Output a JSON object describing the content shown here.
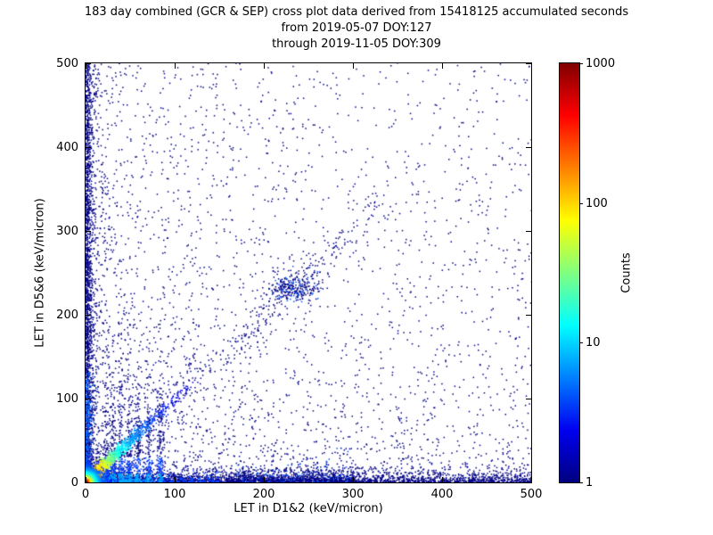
{
  "title": {
    "line1": "183 day combined (GCR & SEP) cross plot data derived from 15418125 accumulated seconds",
    "line2": "from 2019-05-07 DOY:127",
    "line3": "through 2019-11-05 DOY:309"
  },
  "period": {
    "duration_days": 183,
    "accumulated_seconds": 15418125,
    "from_date": "2019-05-07",
    "from_doy": 127,
    "through_date": "2019-11-05",
    "through_doy": 309
  },
  "chart_data": {
    "type": "heatmap",
    "subtype": "2d-histogram-cross-plot",
    "title": "183 day combined (GCR & SEP) cross plot data derived from 15418125 accumulated seconds",
    "xlabel": "LET in D1&2 (keV/micron)",
    "ylabel": "LET in D5&6 (keV/micron)",
    "xlim": [
      0,
      500
    ],
    "ylim": [
      0,
      500
    ],
    "xticks": [
      0,
      100,
      200,
      300,
      400,
      500
    ],
    "yticks": [
      0,
      100,
      200,
      300,
      400,
      500
    ],
    "grid": false,
    "colorbar": {
      "label": "Counts",
      "scale": "log",
      "min": 1,
      "max": 1000,
      "ticks": [
        1,
        10,
        100,
        1000
      ],
      "colormap": "jet",
      "stops": [
        "#000080",
        "#0000f0",
        "#0080ff",
        "#00ffff",
        "#80ff80",
        "#ffff00",
        "#ff8000",
        "#ff0000",
        "#800000"
      ]
    },
    "description": "Cross plot of coincident LET in detectors D1&2 vs D5&6. Counts peak (red/yellow, ~1000) in a hot core at the origin, a cyan-green diagonal streak extends to ~(100,100), dense low-count (dark blue) bands hug both axes out to 500, vertical streaks rise near x=20-85, a small cluster sits near (230,230), and sparse single-count points scatter over the full plane with density decreasing away from the origin.",
    "synthesis": {
      "seed": 42,
      "point_color": "#000085",
      "clusters": [
        {
          "kind": "pow",
          "n": 2000,
          "px": 2.4,
          "py": 2.4,
          "c": "#000085"
        },
        {
          "kind": "uniform",
          "n": 520,
          "x": [
            0,
            500
          ],
          "y": [
            0,
            500
          ],
          "c": "#000085"
        },
        {
          "kind": "pow",
          "n": 700,
          "px": 1.1,
          "py": 3.2,
          "c": "#000085"
        },
        {
          "kind": "pow",
          "n": 700,
          "px": 3.2,
          "py": 1.1,
          "c": "#000085"
        },
        {
          "kind": "bandx",
          "n": 2400,
          "x": [
            0,
            500
          ],
          "p": 1.5,
          "esc": 5,
          "c": "#000085"
        },
        {
          "kind": "bandx",
          "n": 420,
          "x": [
            0,
            150
          ],
          "p": 1.9,
          "esc": 3.5,
          "c": "#0040ff"
        },
        {
          "kind": "bandx",
          "n": 200,
          "x": [
            0,
            70
          ],
          "p": 2.0,
          "esc": 2.5,
          "c": "#00aaff"
        },
        {
          "kind": "bandx",
          "n": 650,
          "x": [
            170,
            300
          ],
          "p": 1.0,
          "esc": 6,
          "cl": [
            [
              "#000085",
              0.8
            ],
            [
              "#0055ff",
              0.2
            ]
          ]
        },
        {
          "kind": "bandy",
          "n": 1500,
          "y": [
            0,
            500
          ],
          "p": 1.3,
          "esc": 3.5,
          "c": "#000085"
        },
        {
          "kind": "bandy",
          "n": 300,
          "y": [
            0,
            130
          ],
          "p": 1.8,
          "esc": 2.2,
          "c": "#0066ff"
        },
        {
          "kind": "diagU",
          "n": 280,
          "t": [
            60,
            330
          ],
          "jit": 10,
          "c": "#000085"
        },
        {
          "kind": "gauss",
          "n": 280,
          "cx": 233,
          "cy": 231,
          "sx": 14,
          "sy": 9,
          "cl": [
            [
              "#000085",
              0.8
            ],
            [
              "#0055ff",
              0.2
            ]
          ]
        },
        {
          "kind": "streaks",
          "xs": [
            22,
            30,
            39,
            48,
            58,
            70,
            83
          ],
          "n": 150,
          "esc": 45,
          "jit": 1.7
        },
        {
          "kind": "diag",
          "n": 1300,
          "scale": 30,
          "max": 130,
          "jit": 3.2
        },
        {
          "kind": "core",
          "n": 2600,
          "sx": 4.5,
          "sy": 4.5
        }
      ]
    }
  }
}
